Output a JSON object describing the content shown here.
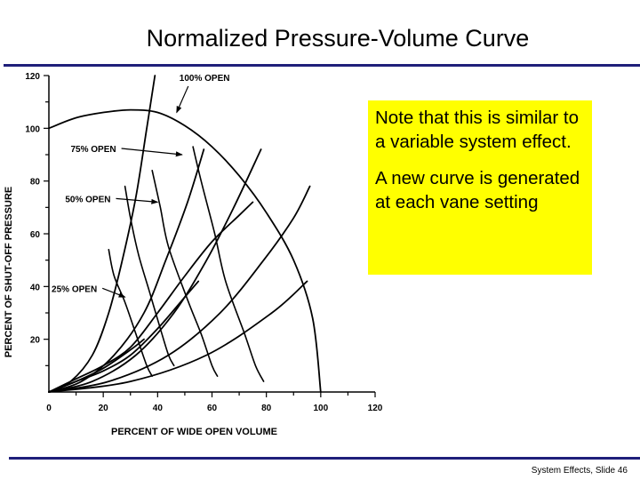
{
  "slide": {
    "title": "Normalized Pressure-Volume Curve",
    "note_paragraphs": [
      "Note that this is similar to a variable system effect.",
      "A new curve is generated at each vane setting"
    ],
    "footer": "System Effects, Slide 46",
    "note_box_color": "#ffff00",
    "rule_color": "#1f1f7a"
  },
  "chart_data": {
    "type": "line",
    "title": "",
    "xlabel": "PERCENT OF WIDE OPEN VOLUME",
    "ylabel": "PERCENT OF SHUT-OFF PRESSURE",
    "xlim": [
      0,
      120
    ],
    "ylim": [
      0,
      120
    ],
    "x_ticks": [
      0,
      20,
      40,
      60,
      80,
      100,
      120
    ],
    "y_ticks": [
      20,
      40,
      60,
      80,
      100,
      120
    ],
    "grid": false,
    "fan_curves": [
      {
        "name": "100% OPEN",
        "points": [
          [
            0,
            100
          ],
          [
            10,
            104
          ],
          [
            20,
            106
          ],
          [
            30,
            107
          ],
          [
            40,
            106
          ],
          [
            50,
            101
          ],
          [
            60,
            93
          ],
          [
            70,
            82
          ],
          [
            80,
            68
          ],
          [
            90,
            50
          ],
          [
            97,
            28
          ],
          [
            100,
            0
          ]
        ]
      },
      {
        "name": "75% OPEN",
        "points": [
          [
            0,
            0
          ],
          [
            10,
            5
          ],
          [
            20,
            10
          ],
          [
            30,
            17
          ],
          [
            40,
            30
          ],
          [
            50,
            44
          ],
          [
            60,
            57
          ],
          [
            70,
            67
          ],
          [
            75,
            72
          ]
        ]
      },
      {
        "name": "50% OPEN",
        "points": [
          [
            0,
            0
          ],
          [
            10,
            4
          ],
          [
            20,
            8
          ],
          [
            30,
            14
          ],
          [
            40,
            24
          ],
          [
            50,
            36
          ],
          [
            55,
            42
          ]
        ]
      },
      {
        "name": "25% OPEN",
        "points": [
          [
            0,
            0
          ],
          [
            10,
            4
          ],
          [
            20,
            9
          ],
          [
            30,
            16
          ],
          [
            35,
            20
          ]
        ]
      }
    ],
    "system_curves": [
      {
        "points": [
          [
            0,
            0
          ],
          [
            8,
            4
          ],
          [
            16,
            14
          ],
          [
            22,
            30
          ],
          [
            27,
            50
          ],
          [
            32,
            74
          ],
          [
            36,
            100
          ],
          [
            39,
            120
          ]
        ]
      },
      {
        "points": [
          [
            0,
            0
          ],
          [
            12,
            4
          ],
          [
            24,
            14
          ],
          [
            35,
            30
          ],
          [
            43,
            50
          ],
          [
            51,
            72
          ],
          [
            57,
            92
          ]
        ]
      },
      {
        "points": [
          [
            0,
            0
          ],
          [
            16,
            4
          ],
          [
            32,
            14
          ],
          [
            46,
            30
          ],
          [
            58,
            50
          ],
          [
            68,
            70
          ],
          [
            78,
            92
          ]
        ]
      },
      {
        "points": [
          [
            0,
            0
          ],
          [
            22,
            4
          ],
          [
            44,
            14
          ],
          [
            63,
            30
          ],
          [
            79,
            50
          ],
          [
            90,
            66
          ],
          [
            96,
            78
          ]
        ]
      },
      {
        "points": [
          [
            0,
            0
          ],
          [
            30,
            4
          ],
          [
            58,
            14
          ],
          [
            82,
            30
          ],
          [
            95,
            42
          ]
        ]
      }
    ],
    "vane_curves": [
      {
        "points": [
          [
            53,
            93
          ],
          [
            56,
            80
          ],
          [
            61,
            60
          ],
          [
            65,
            42
          ],
          [
            72,
            22
          ],
          [
            76,
            10
          ],
          [
            79,
            4
          ]
        ]
      },
      {
        "points": [
          [
            38,
            84
          ],
          [
            41,
            70
          ],
          [
            44,
            55
          ],
          [
            51,
            35
          ],
          [
            56,
            22
          ],
          [
            60,
            10
          ],
          [
            62,
            6
          ]
        ]
      },
      {
        "points": [
          [
            28,
            78
          ],
          [
            30,
            66
          ],
          [
            33,
            52
          ],
          [
            37,
            38
          ],
          [
            41,
            24
          ],
          [
            44,
            14
          ],
          [
            46,
            10
          ]
        ]
      },
      {
        "points": [
          [
            22,
            54
          ],
          [
            24,
            44
          ],
          [
            28,
            34
          ],
          [
            32,
            22
          ],
          [
            36,
            10
          ],
          [
            38,
            6
          ]
        ]
      }
    ],
    "annotations": [
      {
        "text": "100% OPEN",
        "x": 48,
        "y": 118,
        "arrow_to": [
          47,
          106
        ]
      },
      {
        "text": "75% OPEN",
        "x": 8,
        "y": 91,
        "arrow_to": [
          49,
          90
        ]
      },
      {
        "text": "50% OPEN",
        "x": 6,
        "y": 72,
        "arrow_to": [
          40,
          72
        ]
      },
      {
        "text": "25% OPEN",
        "x": 1,
        "y": 38,
        "arrow_to": [
          28,
          36
        ]
      }
    ]
  }
}
